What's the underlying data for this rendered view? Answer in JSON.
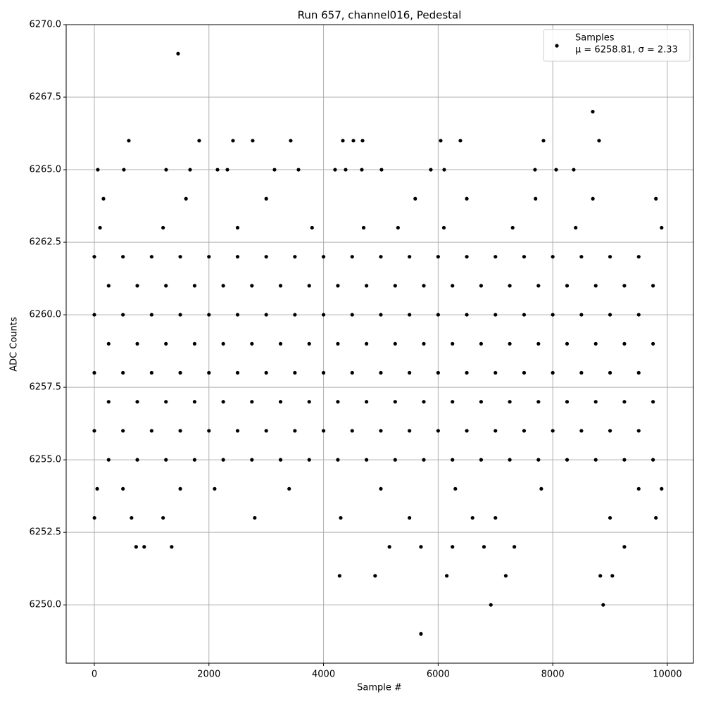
{
  "chart_data": {
    "type": "scatter",
    "title": "Run 657, channel016, Pedestal",
    "x_label": "Sample #",
    "y_label": "ADC Counts",
    "legend_note": "μ = 6258.81, σ = 2.33",
    "legend_position": "upper right",
    "grid": true,
    "xlim": [
      -491,
      10455
    ],
    "ylim": [
      6247.99,
      6270
    ],
    "xticks": [
      0,
      2000,
      4000,
      6000,
      8000,
      10000
    ],
    "yticks": [
      {
        "value": 6250,
        "label": "6250.0"
      },
      {
        "value": 6252.5,
        "label": "6252.5"
      },
      {
        "value": 6255,
        "label": "6255.0"
      },
      {
        "value": 6257.5,
        "label": "6257.5"
      },
      {
        "value": 6260,
        "label": "6260.0"
      },
      {
        "value": 6262.5,
        "label": "6262.5"
      },
      {
        "value": 6265,
        "label": "6265.0"
      },
      {
        "value": 6267.5,
        "label": "6267.5"
      },
      {
        "value": 6270,
        "label": "6270.0"
      }
    ],
    "series": [
      {
        "name": "Samples",
        "color": "#000000",
        "x": [
          1462,
          8698,
          602,
          1830,
          2420,
          2764,
          3427,
          4337,
          4521,
          4681,
          6044,
          6388,
          7838,
          8808,
          61,
          516,
          1253,
          1671,
          2150,
          2322,
          3145,
          3563,
          4201,
          4386,
          4668,
          5012,
          5872,
          6106,
          7690,
          8059,
          8366,
          160,
          1600,
          3000,
          5600,
          6500,
          7700,
          8700,
          9800,
          100,
          1200,
          2500,
          3800,
          4700,
          5300,
          6100,
          7300,
          8400,
          9900,
          0,
          500,
          1000,
          1500,
          2000,
          2500,
          3000,
          3500,
          4000,
          4500,
          5000,
          5500,
          6000,
          6500,
          7000,
          7500,
          8000,
          8500,
          9000,
          9500,
          250,
          750,
          1250,
          1750,
          2250,
          2750,
          3250,
          3750,
          4250,
          4750,
          5250,
          5750,
          6250,
          6750,
          7250,
          7750,
          8250,
          8750,
          9250,
          9750,
          0,
          500,
          1000,
          1500,
          2000,
          2500,
          3000,
          3500,
          4000,
          4500,
          5000,
          5500,
          6000,
          6500,
          7000,
          7500,
          8000,
          8500,
          9000,
          9500,
          250,
          750,
          1250,
          1750,
          2250,
          2750,
          3250,
          3750,
          4250,
          4750,
          5250,
          5750,
          6250,
          6750,
          7250,
          7750,
          8250,
          8750,
          9250,
          9750,
          0,
          500,
          1000,
          1500,
          2000,
          2500,
          3000,
          3500,
          4000,
          4500,
          5000,
          5500,
          6000,
          6500,
          7000,
          7500,
          8000,
          8500,
          9000,
          9500,
          250,
          750,
          1250,
          1750,
          2250,
          2750,
          3250,
          3750,
          4250,
          4750,
          5250,
          5750,
          6250,
          6750,
          7250,
          7750,
          8250,
          8750,
          9250,
          9750,
          0,
          500,
          1000,
          1500,
          2000,
          2500,
          3000,
          3500,
          4000,
          4500,
          5000,
          5500,
          6000,
          6500,
          7000,
          7500,
          8000,
          8500,
          9000,
          9500,
          250,
          750,
          1250,
          1750,
          2250,
          2750,
          3250,
          3750,
          4250,
          4750,
          5250,
          5750,
          6250,
          6750,
          7250,
          7750,
          8250,
          8750,
          9250,
          9750,
          50,
          500,
          1500,
          2100,
          3400,
          5000,
          6300,
          7800,
          9500,
          9900,
          2,
          650,
          1200,
          2800,
          4300,
          5500,
          6600,
          7000,
          9000,
          9800,
          730,
          870,
          1350,
          5150,
          5700,
          6250,
          6800,
          7330,
          9250,
          4280,
          4900,
          6150,
          7180,
          8830,
          9040,
          6920,
          8880,
          5700
        ],
        "values": [
          6269,
          6267,
          6266,
          6266,
          6266,
          6266,
          6266,
          6266,
          6266,
          6266,
          6266,
          6266,
          6266,
          6266,
          6265,
          6265,
          6265,
          6265,
          6265,
          6265,
          6265,
          6265,
          6265,
          6265,
          6265,
          6265,
          6265,
          6265,
          6265,
          6265,
          6265,
          6264,
          6264,
          6264,
          6264,
          6264,
          6264,
          6264,
          6264,
          6263,
          6263,
          6263,
          6263,
          6263,
          6263,
          6263,
          6263,
          6263,
          6263,
          6262,
          6262,
          6262,
          6262,
          6262,
          6262,
          6262,
          6262,
          6262,
          6262,
          6262,
          6262,
          6262,
          6262,
          6262,
          6262,
          6262,
          6262,
          6262,
          6262,
          6261,
          6261,
          6261,
          6261,
          6261,
          6261,
          6261,
          6261,
          6261,
          6261,
          6261,
          6261,
          6261,
          6261,
          6261,
          6261,
          6261,
          6261,
          6261,
          6261,
          6260,
          6260,
          6260,
          6260,
          6260,
          6260,
          6260,
          6260,
          6260,
          6260,
          6260,
          6260,
          6260,
          6260,
          6260,
          6260,
          6260,
          6260,
          6260,
          6260,
          6259,
          6259,
          6259,
          6259,
          6259,
          6259,
          6259,
          6259,
          6259,
          6259,
          6259,
          6259,
          6259,
          6259,
          6259,
          6259,
          6259,
          6259,
          6259,
          6259,
          6258,
          6258,
          6258,
          6258,
          6258,
          6258,
          6258,
          6258,
          6258,
          6258,
          6258,
          6258,
          6258,
          6258,
          6258,
          6258,
          6258,
          6258,
          6258,
          6258,
          6257,
          6257,
          6257,
          6257,
          6257,
          6257,
          6257,
          6257,
          6257,
          6257,
          6257,
          6257,
          6257,
          6257,
          6257,
          6257,
          6257,
          6257,
          6257,
          6257,
          6256,
          6256,
          6256,
          6256,
          6256,
          6256,
          6256,
          6256,
          6256,
          6256,
          6256,
          6256,
          6256,
          6256,
          6256,
          6256,
          6256,
          6256,
          6256,
          6256,
          6255,
          6255,
          6255,
          6255,
          6255,
          6255,
          6255,
          6255,
          6255,
          6255,
          6255,
          6255,
          6255,
          6255,
          6255,
          6255,
          6255,
          6255,
          6255,
          6255,
          6254,
          6254,
          6254,
          6254,
          6254,
          6254,
          6254,
          6254,
          6254,
          6254,
          6253,
          6253,
          6253,
          6253,
          6253,
          6253,
          6253,
          6253,
          6253,
          6253,
          6252,
          6252,
          6252,
          6252,
          6252,
          6252,
          6252,
          6252,
          6252,
          6251,
          6251,
          6251,
          6251,
          6251,
          6251,
          6250,
          6250,
          6249
        ]
      }
    ]
  }
}
